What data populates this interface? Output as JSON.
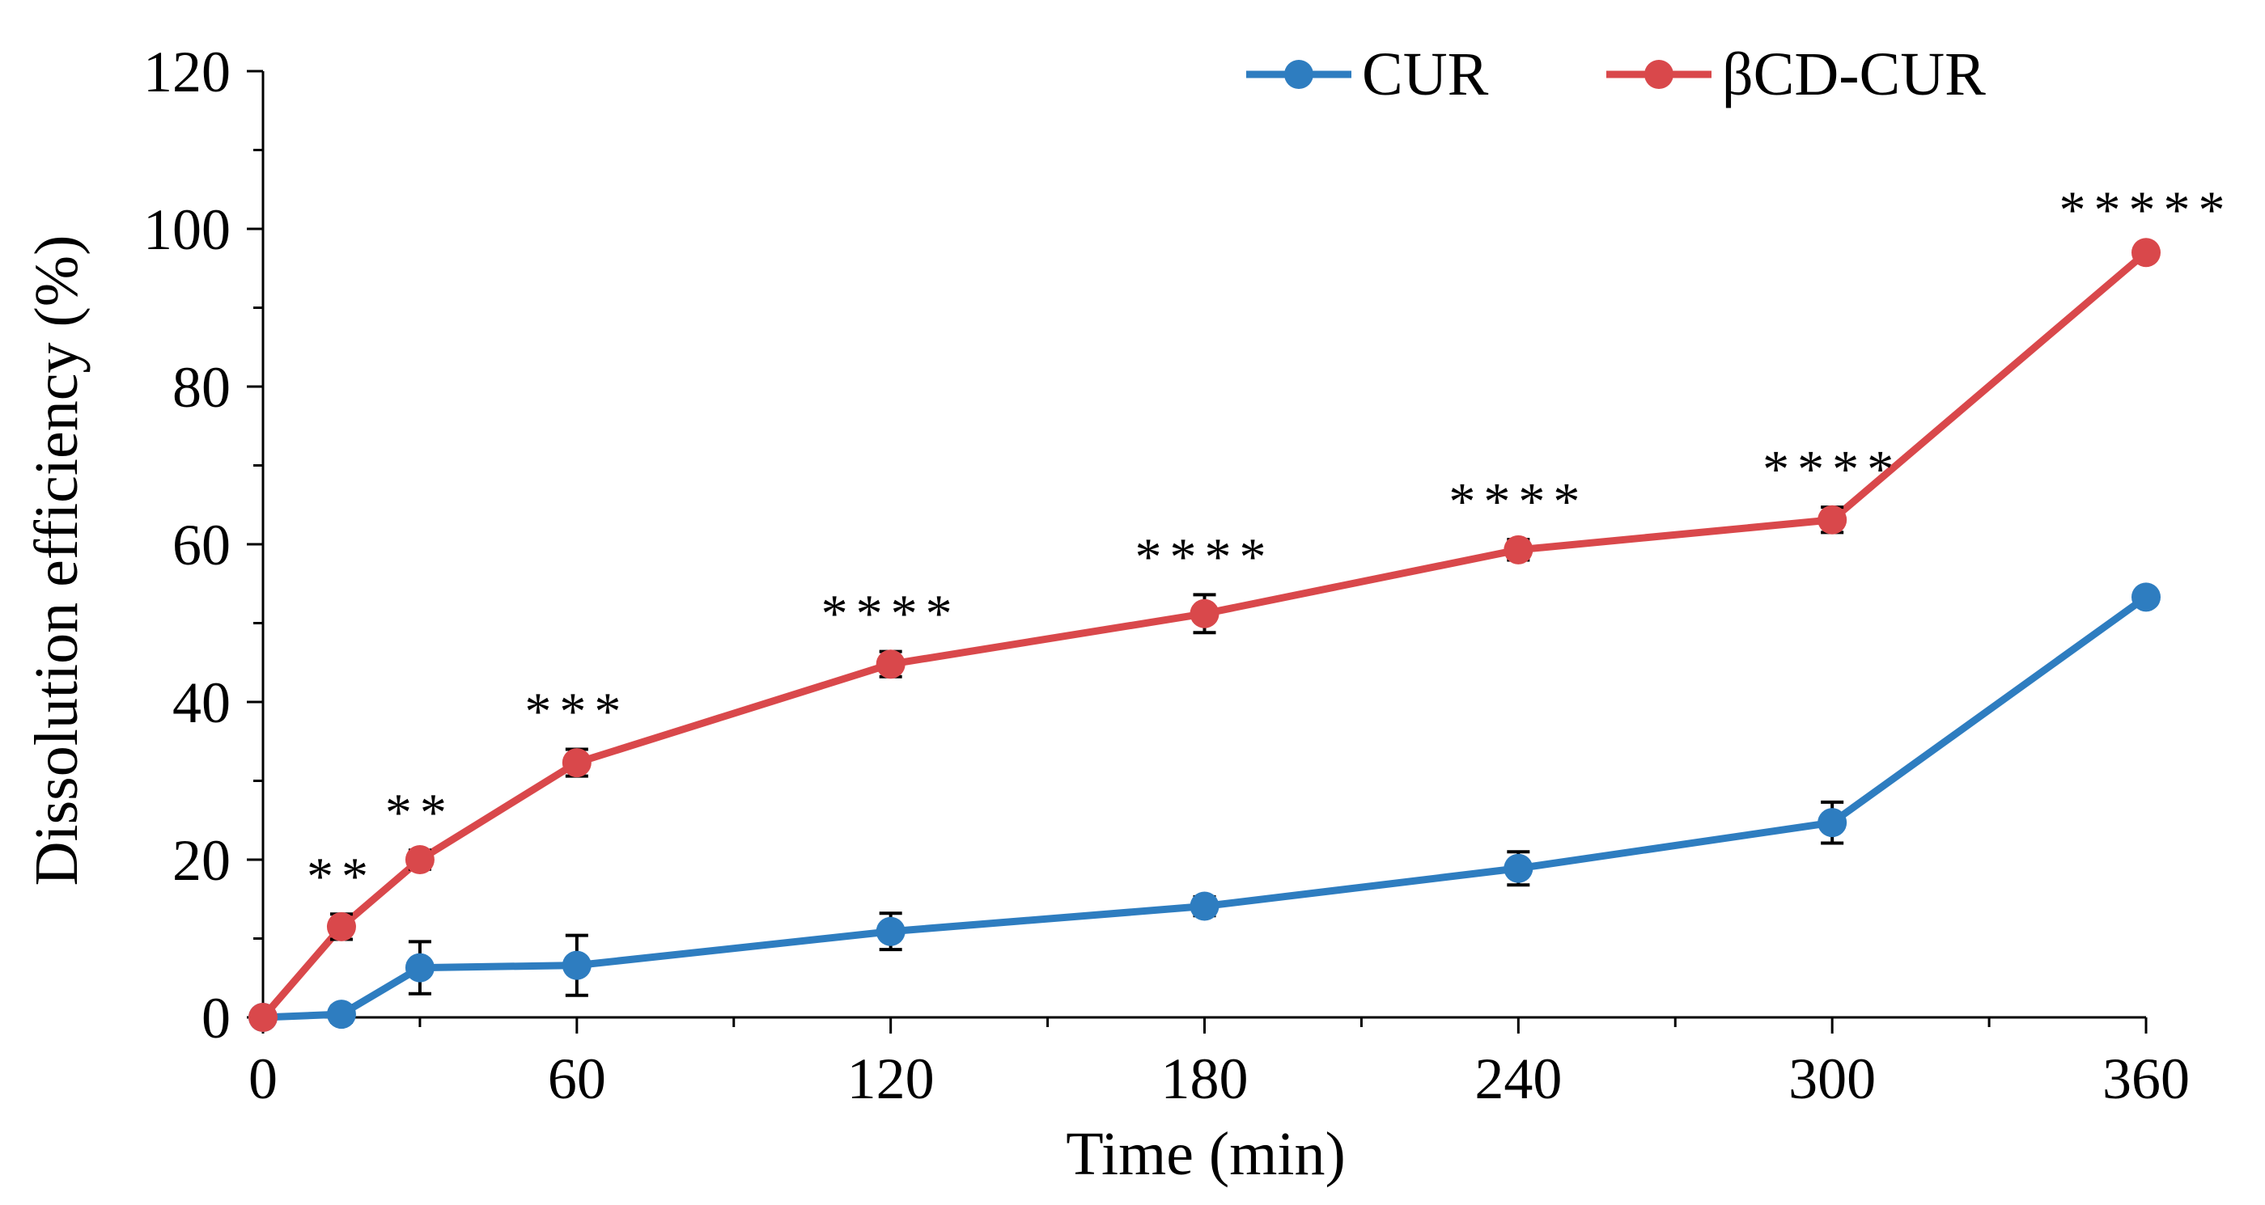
{
  "chart_data": {
    "type": "line",
    "title": "",
    "xlabel": "Time (min)",
    "ylabel": "Dissolution efficiency (%)",
    "xlim": [
      0,
      360
    ],
    "ylim": [
      0,
      120
    ],
    "x_ticks": [
      0,
      60,
      120,
      180,
      240,
      300,
      360
    ],
    "x_tick_labels": [
      "0",
      "60",
      "120",
      "180",
      "240",
      "300",
      "360"
    ],
    "x_minor_step": 30,
    "y_ticks": [
      0,
      20,
      40,
      60,
      80,
      100,
      120
    ],
    "y_tick_labels": [
      "0",
      "20",
      "40",
      "60",
      "80",
      "100",
      "120"
    ],
    "y_minor_step": 10,
    "grid": false,
    "legend_position": "top-center",
    "x": [
      0,
      15,
      30,
      60,
      120,
      180,
      240,
      300,
      360
    ],
    "series": [
      {
        "name": "CUR",
        "color": "#2E7DC0",
        "values": [
          0,
          0.4,
          6.3,
          6.6,
          10.9,
          14.1,
          18.9,
          24.7,
          53.3
        ],
        "errors": [
          0,
          1.0,
          3.3,
          3.8,
          2.3,
          1.2,
          2.1,
          2.6,
          0.8
        ]
      },
      {
        "name": "βCD-CUR",
        "color": "#D9484B",
        "values": [
          0,
          11.5,
          20.0,
          32.3,
          44.8,
          51.2,
          59.3,
          63.1,
          97.0
        ],
        "errors": [
          0,
          1.6,
          1.2,
          1.7,
          1.6,
          2.4,
          1.3,
          1.6,
          0.6
        ]
      }
    ],
    "significance": [
      {
        "x": 15,
        "label": "**"
      },
      {
        "x": 30,
        "label": "**"
      },
      {
        "x": 60,
        "label": "***"
      },
      {
        "x": 120,
        "label": "****"
      },
      {
        "x": 180,
        "label": "****"
      },
      {
        "x": 240,
        "label": "****"
      },
      {
        "x": 300,
        "label": "****"
      },
      {
        "x": 360,
        "label": "*****"
      }
    ]
  }
}
